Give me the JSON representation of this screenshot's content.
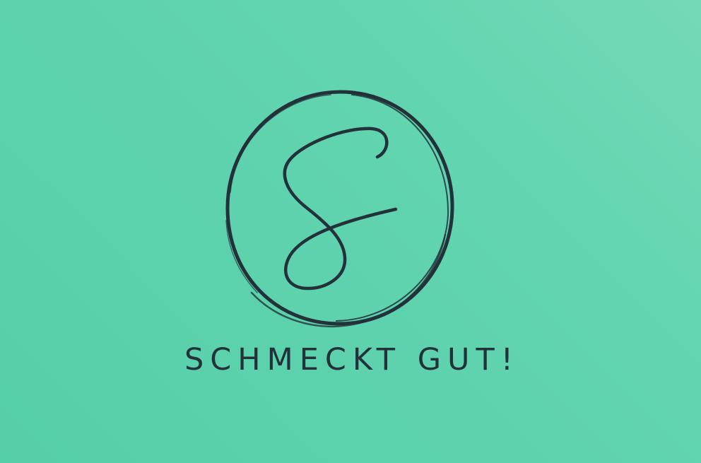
{
  "brand": {
    "name": "SCHMECKT GUT!",
    "monogram": "S"
  },
  "colors": {
    "background_light": "#74d9b6",
    "background_dark": "#55cfa8",
    "ink": "#23323a"
  },
  "icons": {
    "emblem": "circle-monogram-s-icon"
  }
}
